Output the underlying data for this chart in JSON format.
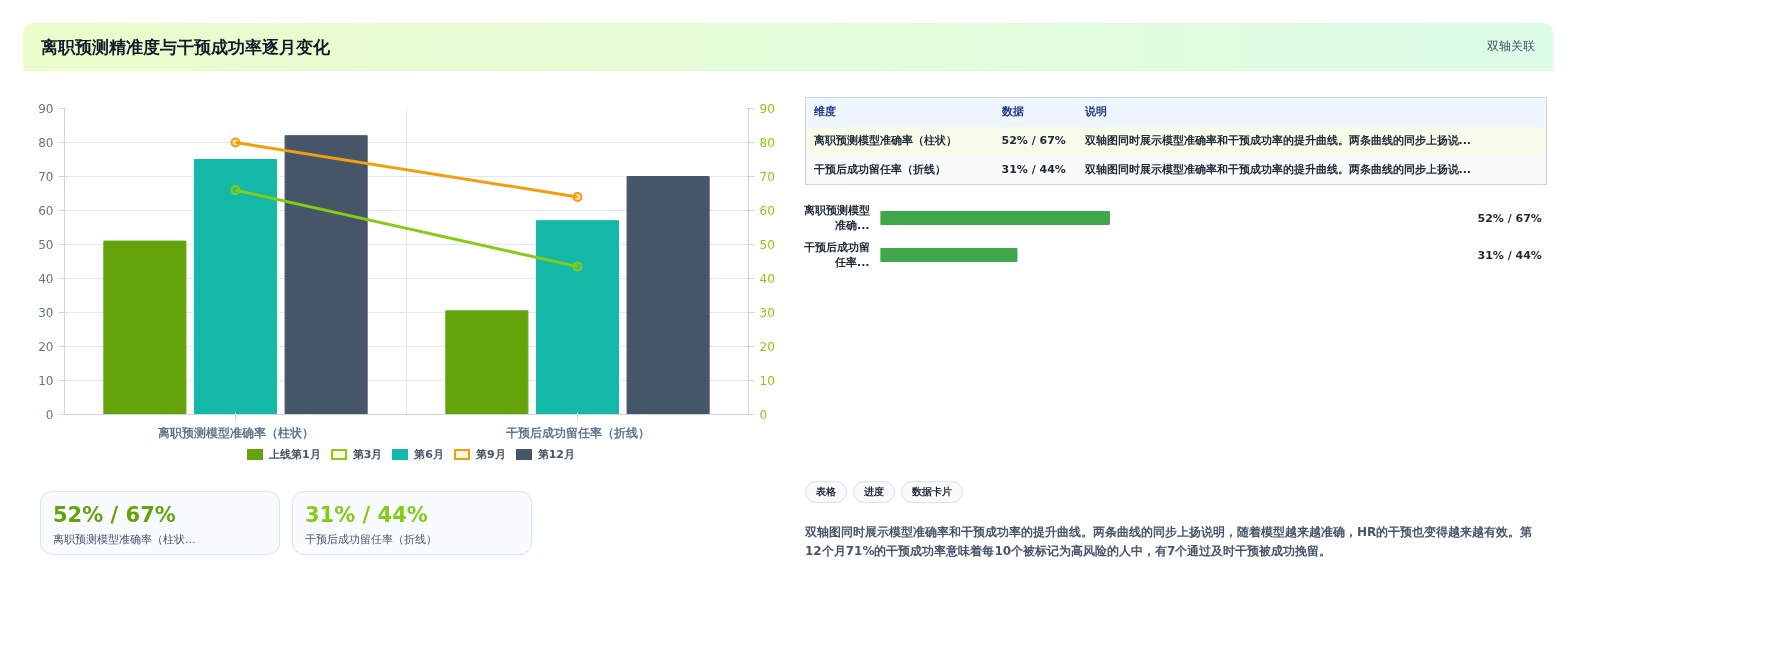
{
  "chart_data": [
    {
      "type": "bar",
      "title": "离职预测精准度与干预成功率逐月变化",
      "annotations": [
        "双轴关联"
      ],
      "categories": [
        "离职预测模型准确率（柱状）",
        "干预后成功留任率（折线）"
      ],
      "series": [
        {
          "name": "上线第1月",
          "color": "#65a30d",
          "values": [
            51,
            30.5
          ]
        },
        {
          "name": "第3月",
          "type": "line",
          "axis": "y2",
          "color": "#84cc16",
          "values": [
            66,
            43.5
          ]
        },
        {
          "name": "第6月",
          "color": "#14b8a6",
          "values": [
            75,
            57
          ]
        },
        {
          "name": "第9月",
          "type": "line",
          "axis": "y2",
          "color": "#f59e0b",
          "values": [
            80,
            64
          ]
        },
        {
          "name": "第12月",
          "color": "#475569",
          "values": [
            82,
            70
          ]
        }
      ],
      "ylim": [
        0,
        90
      ],
      "yticks": [
        0,
        10,
        20,
        30,
        40,
        50,
        60,
        70,
        80,
        90
      ],
      "y2lim": [
        0,
        90
      ],
      "y2ticks": [
        0,
        10,
        20,
        30,
        40,
        50,
        60,
        70,
        80,
        90
      ],
      "grid": true,
      "legend": "bottom",
      "marker": "circle",
      "line_style": "solid"
    },
    {
      "type": "other",
      "annotations": [
        "维度",
        "数据",
        "说明",
        "离职预测模型准确率（柱状）",
        "52% / 67%",
        "双轴图同时展示模型准确率和干预成功率的提升曲线。两条曲线的同步上扬说...",
        "干预后成功留任率（折线）",
        "31% / 44%",
        "双轴图同时展示模型准确率和干预成功率的提升曲线。两条曲线的同步上扬说..."
      ]
    },
    {
      "type": "bar",
      "orientation": "horizontal",
      "tick_labels": "y",
      "categories": [
        "离职预测模型准确...",
        "干预后成功留任率..."
      ],
      "values": [
        52,
        31
      ],
      "value_labels": [
        "52% / 67%",
        "31% / 44%"
      ],
      "colors": [
        "#3fa64a",
        "#3fa64a"
      ]
    },
    {
      "type": "other",
      "annotations": [
        "52% / 67%",
        "离职预测模型准确率（柱状...",
        "31% / 44%",
        "干预后成功留任率（折线）"
      ],
      "colors": [
        "#65a30d",
        "#84cc16"
      ]
    },
    {
      "type": "other",
      "annotations": [
        "表格",
        "进度",
        "数据卡片",
        "双轴图同时展示模型准确率和干预成功率的提升曲线。两条曲线的同步上扬说明，随着模型越来越准确，HR的干预也变得越来越有效。第12个月71%的干预成功率意味着每10个被标记为高风险的人中，有7个通过及时干预被成功挽留。"
      ]
    }
  ]
}
